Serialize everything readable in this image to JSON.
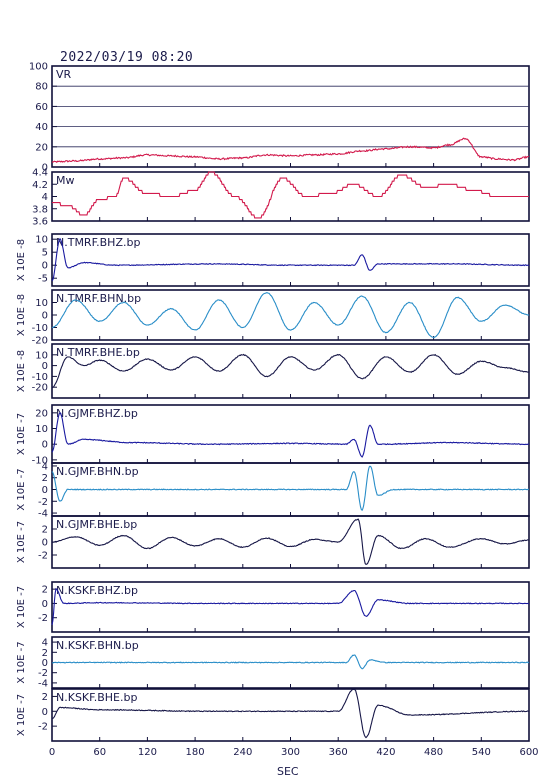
{
  "header": {
    "datetime": "2022/03/19  08:20"
  },
  "chart_data": {
    "type": "line",
    "xlabel": "SEC",
    "xlim": [
      0,
      600
    ],
    "xticks": [
      0,
      60,
      120,
      180,
      240,
      300,
      360,
      420,
      480,
      540,
      600
    ],
    "panels": [
      {
        "id": "vr",
        "title": "VR",
        "ylabel": "",
        "ylim": [
          0,
          100
        ],
        "yticks": [
          0,
          20,
          40,
          60,
          80,
          100
        ],
        "grid": true,
        "color": "#d21a4c",
        "series_shape": "VR",
        "points": [
          [
            0,
            5
          ],
          [
            30,
            6
          ],
          [
            60,
            8
          ],
          [
            90,
            9
          ],
          [
            120,
            12
          ],
          [
            150,
            11
          ],
          [
            180,
            10
          ],
          [
            210,
            8
          ],
          [
            240,
            9
          ],
          [
            270,
            12
          ],
          [
            300,
            11
          ],
          [
            330,
            12
          ],
          [
            360,
            13
          ],
          [
            390,
            16
          ],
          [
            420,
            18
          ],
          [
            450,
            20
          ],
          [
            480,
            19
          ],
          [
            500,
            22
          ],
          [
            520,
            28
          ],
          [
            540,
            10
          ],
          [
            560,
            8
          ],
          [
            580,
            7
          ],
          [
            600,
            10
          ]
        ]
      },
      {
        "id": "mw",
        "title": "Mw",
        "ylabel": "",
        "ylim": [
          3.6,
          4.4
        ],
        "yticks": [
          3.6,
          3.8,
          4.0,
          4.2,
          4.4
        ],
        "grid": false,
        "color": "#d21a4c",
        "points": [
          [
            0,
            3.9
          ],
          [
            20,
            3.85
          ],
          [
            40,
            3.7
          ],
          [
            60,
            3.95
          ],
          [
            80,
            4.0
          ],
          [
            90,
            4.3
          ],
          [
            120,
            4.05
          ],
          [
            150,
            4.0
          ],
          [
            180,
            4.1
          ],
          [
            200,
            4.4
          ],
          [
            230,
            4.0
          ],
          [
            260,
            3.65
          ],
          [
            290,
            4.3
          ],
          [
            320,
            4.0
          ],
          [
            350,
            4.05
          ],
          [
            380,
            4.2
          ],
          [
            410,
            4.0
          ],
          [
            440,
            4.35
          ],
          [
            470,
            4.15
          ],
          [
            500,
            4.2
          ],
          [
            530,
            4.1
          ],
          [
            560,
            4.0
          ],
          [
            600,
            4.0
          ]
        ]
      },
      {
        "id": "tmrf-bhz",
        "title": "N.TMRF.BHZ.bp",
        "ylabel": "X 10E -8",
        "ylim": [
          -8,
          12
        ],
        "yticks": [
          -5,
          0,
          5,
          10
        ],
        "grid": false,
        "color": "#1a1aa0",
        "points": [
          [
            0,
            -6
          ],
          [
            10,
            10
          ],
          [
            20,
            -1
          ],
          [
            40,
            1
          ],
          [
            80,
            0
          ],
          [
            200,
            0.5
          ],
          [
            300,
            0
          ],
          [
            380,
            0
          ],
          [
            390,
            4
          ],
          [
            400,
            -2
          ],
          [
            410,
            0.5
          ],
          [
            500,
            0.5
          ],
          [
            600,
            0
          ]
        ]
      },
      {
        "id": "tmrf-bhn",
        "title": "N.TMRF.BHN.bp",
        "ylabel": "X 10E -8",
        "ylim": [
          -20,
          20
        ],
        "yticks": [
          -20,
          -10,
          0,
          10
        ],
        "grid": false,
        "color": "#2a8ec8",
        "points": [
          [
            0,
            -10
          ],
          [
            30,
            12
          ],
          [
            60,
            -5
          ],
          [
            90,
            10
          ],
          [
            120,
            -8
          ],
          [
            150,
            5
          ],
          [
            180,
            -12
          ],
          [
            210,
            12
          ],
          [
            240,
            -10
          ],
          [
            270,
            18
          ],
          [
            300,
            -12
          ],
          [
            330,
            10
          ],
          [
            360,
            -8
          ],
          [
            390,
            15
          ],
          [
            420,
            -14
          ],
          [
            450,
            10
          ],
          [
            480,
            -18
          ],
          [
            510,
            14
          ],
          [
            540,
            -5
          ],
          [
            570,
            8
          ],
          [
            600,
            0
          ]
        ]
      },
      {
        "id": "tmrf-bhe",
        "title": "N.TMRF.BHE.bp",
        "ylabel": "X 10E -8",
        "ylim": [
          -30,
          20
        ],
        "yticks": [
          -20,
          -10,
          0,
          10
        ],
        "grid": false,
        "color": "#181848",
        "points": [
          [
            0,
            -20
          ],
          [
            20,
            8
          ],
          [
            40,
            0
          ],
          [
            60,
            5
          ],
          [
            90,
            -5
          ],
          [
            120,
            6
          ],
          [
            150,
            -4
          ],
          [
            180,
            8
          ],
          [
            210,
            -5
          ],
          [
            240,
            10
          ],
          [
            270,
            -10
          ],
          [
            300,
            8
          ],
          [
            330,
            -4
          ],
          [
            360,
            10
          ],
          [
            390,
            -12
          ],
          [
            420,
            8
          ],
          [
            450,
            -6
          ],
          [
            480,
            10
          ],
          [
            510,
            -8
          ],
          [
            540,
            4
          ],
          [
            570,
            -2
          ],
          [
            600,
            -6
          ]
        ]
      },
      {
        "id": "gjmf-bhz",
        "title": "N.GJMF.BHZ.bp",
        "ylabel": "X 10E -7",
        "ylim": [
          -12,
          25
        ],
        "yticks": [
          -10,
          0,
          10,
          20
        ],
        "grid": false,
        "color": "#1a1aa0",
        "points": [
          [
            0,
            -5
          ],
          [
            10,
            20
          ],
          [
            20,
            0
          ],
          [
            40,
            3
          ],
          [
            100,
            1
          ],
          [
            200,
            0
          ],
          [
            300,
            0.5
          ],
          [
            370,
            0
          ],
          [
            380,
            3
          ],
          [
            390,
            -8
          ],
          [
            400,
            12
          ],
          [
            410,
            0
          ],
          [
            500,
            1
          ],
          [
            600,
            0
          ]
        ]
      },
      {
        "id": "gjmf-bhn",
        "title": "N.GJMF.BHN.bp",
        "ylabel": "X 10E -7",
        "ylim": [
          -4.5,
          4.5
        ],
        "yticks": [
          -4,
          -2,
          0,
          2,
          4
        ],
        "grid": false,
        "color": "#2a8ec8",
        "points": [
          [
            0,
            3
          ],
          [
            10,
            -2
          ],
          [
            20,
            0
          ],
          [
            60,
            0
          ],
          [
            200,
            0
          ],
          [
            300,
            0
          ],
          [
            370,
            0
          ],
          [
            380,
            3
          ],
          [
            390,
            -3.5
          ],
          [
            400,
            4
          ],
          [
            410,
            -1
          ],
          [
            430,
            0
          ],
          [
            600,
            0
          ]
        ]
      },
      {
        "id": "gjmf-bhe",
        "title": "N.GJMF.BHE.bp",
        "ylabel": "X 10E -7",
        "ylim": [
          -4,
          4
        ],
        "yticks": [
          -2,
          0,
          2
        ],
        "grid": false,
        "color": "#181848",
        "points": [
          [
            0,
            0
          ],
          [
            30,
            0.8
          ],
          [
            60,
            -0.5
          ],
          [
            90,
            1
          ],
          [
            120,
            -1
          ],
          [
            150,
            0.7
          ],
          [
            180,
            -0.6
          ],
          [
            210,
            0.5
          ],
          [
            240,
            -0.8
          ],
          [
            270,
            0.6
          ],
          [
            300,
            -0.7
          ],
          [
            330,
            0.4
          ],
          [
            360,
            0
          ],
          [
            385,
            3.5
          ],
          [
            395,
            -3.5
          ],
          [
            410,
            1
          ],
          [
            440,
            -1
          ],
          [
            470,
            0.5
          ],
          [
            500,
            -0.8
          ],
          [
            540,
            0.5
          ],
          [
            570,
            -0.3
          ],
          [
            600,
            0.3
          ]
        ]
      },
      {
        "id": "kskf-bhz",
        "title": "N.KSKF.BHZ.bp",
        "ylabel": "X 10E -7",
        "ylim": [
          -4,
          3
        ],
        "yticks": [
          -2,
          0,
          2
        ],
        "grid": false,
        "color": "#1a1aa0",
        "points": [
          [
            0,
            -3
          ],
          [
            5,
            2
          ],
          [
            15,
            0
          ],
          [
            60,
            0.1
          ],
          [
            200,
            0
          ],
          [
            360,
            0
          ],
          [
            380,
            1.8
          ],
          [
            395,
            -1.8
          ],
          [
            410,
            0.5
          ],
          [
            450,
            0
          ],
          [
            600,
            0
          ]
        ]
      },
      {
        "id": "kskf-bhn",
        "title": "N.KSKF.BHN.bp",
        "ylabel": "X 10E -7",
        "ylim": [
          -5,
          5
        ],
        "yticks": [
          -4,
          -2,
          0,
          2,
          4
        ],
        "grid": false,
        "color": "#2a8ec8",
        "points": [
          [
            0,
            0
          ],
          [
            200,
            0
          ],
          [
            370,
            0
          ],
          [
            380,
            1.5
          ],
          [
            390,
            -1.2
          ],
          [
            400,
            0.5
          ],
          [
            420,
            0
          ],
          [
            600,
            0
          ]
        ]
      },
      {
        "id": "kskf-bhe",
        "title": "N.KSKF.BHE.bp",
        "ylabel": "X 10E -7",
        "ylim": [
          -4,
          3
        ],
        "yticks": [
          -2,
          0,
          2
        ],
        "grid": false,
        "color": "#181848",
        "points": [
          [
            0,
            -1
          ],
          [
            10,
            0.5
          ],
          [
            60,
            0.2
          ],
          [
            200,
            0
          ],
          [
            360,
            0
          ],
          [
            380,
            3
          ],
          [
            395,
            -3.5
          ],
          [
            410,
            0.8
          ],
          [
            450,
            -0.5
          ],
          [
            600,
            0
          ]
        ]
      }
    ]
  }
}
